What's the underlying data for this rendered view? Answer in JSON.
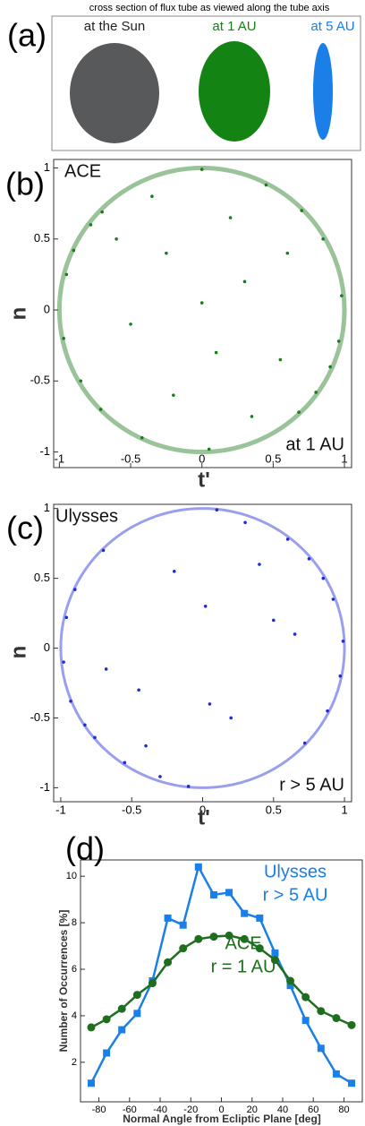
{
  "panel_a": {
    "panel_label": "(a)",
    "title": "cross section of flux tube as viewed along the tube axis",
    "labels": [
      "at the Sun",
      "at 1 AU",
      "at 5 AU"
    ]
  },
  "chart_data": [
    {
      "type": "scatter",
      "panel_label": "(b)",
      "xlabel": "t'",
      "ylabel": "n",
      "color": "#1f7a1f",
      "annotations": [
        "ACE",
        "at 1 AU"
      ],
      "x": [
        0.98,
        -0.97,
        0.7,
        -0.7,
        0.68,
        -0.71,
        0.0,
        0.05,
        0.9,
        -0.9,
        0.45,
        -0.42,
        0.3,
        -0.25,
        0.1,
        -0.5,
        0.55,
        0.6,
        -0.6,
        -0.2,
        0.2,
        0.85,
        -0.85,
        0.35,
        -0.35,
        0.0,
        -0.95,
        0.96,
        0.8,
        -0.78
      ],
      "values": [
        0.1,
        -0.2,
        0.7,
        0.69,
        -0.72,
        -0.7,
        0.99,
        -0.98,
        -0.4,
        0.42,
        0.88,
        -0.9,
        0.2,
        0.4,
        -0.3,
        -0.1,
        -0.35,
        0.4,
        0.5,
        -0.6,
        0.65,
        0.5,
        -0.5,
        -0.75,
        0.8,
        0.05,
        0.25,
        -0.22,
        -0.58,
        0.6
      ],
      "xlim": [
        -1.04,
        1.05
      ],
      "ylim": [
        -1.11,
        1.06
      ],
      "xticks": [
        -1,
        -0.5,
        0,
        0.5,
        1
      ],
      "yticks": [
        -1,
        -0.5,
        0,
        0.5,
        1
      ]
    },
    {
      "type": "scatter",
      "panel_label": "(c)",
      "xlabel": "t'",
      "ylabel": "n",
      "color": "#1f2bd6",
      "annotations": [
        "Ulysses",
        "r > 5 AU"
      ],
      "x": [
        0.99,
        -0.98,
        0.92,
        -0.93,
        0.88,
        -0.9,
        0.75,
        -0.76,
        0.72,
        -0.7,
        0.97,
        -0.96,
        0.6,
        -0.55,
        0.3,
        -0.3,
        0.1,
        -0.1,
        0.5,
        -0.45,
        0.2,
        -0.2,
        0.65,
        -0.68,
        0.4,
        -0.4,
        0.02,
        0.05,
        0.85,
        -0.83
      ],
      "values": [
        0.05,
        -0.1,
        0.35,
        -0.38,
        -0.45,
        0.42,
        0.64,
        -0.64,
        -0.68,
        0.7,
        -0.2,
        0.22,
        0.78,
        -0.82,
        0.9,
        -0.92,
        0.99,
        -0.99,
        0.2,
        -0.3,
        -0.5,
        0.55,
        0.1,
        -0.15,
        0.6,
        -0.7,
        0.3,
        -0.4,
        0.5,
        -0.55
      ],
      "xlim": [
        -1.05,
        1.05
      ],
      "ylim": [
        -1.1,
        1.03
      ],
      "xticks": [
        -1,
        -0.5,
        0,
        0.5,
        1
      ],
      "yticks": [
        -1,
        -0.5,
        0,
        0.5,
        1
      ]
    },
    {
      "type": "line",
      "panel_label": "(d)",
      "xlabel": "Normal Angle from Ecliptic Plane  [deg]",
      "ylabel": "Number of Occurrences [%]",
      "x": [
        -85,
        -75,
        -65,
        -55,
        -45,
        -35,
        -25,
        -15,
        -5,
        5,
        15,
        25,
        35,
        45,
        55,
        65,
        75,
        85
      ],
      "series": [
        {
          "name": "Ulysses",
          "color": "#1a7fe6",
          "marker": "square",
          "annotation": "r > 5 AU",
          "values": [
            1.1,
            2.4,
            3.4,
            4.1,
            5.5,
            8.2,
            7.9,
            10.4,
            9.2,
            9.3,
            8.4,
            8.2,
            6.7,
            5.3,
            3.8,
            2.6,
            1.5,
            1.1
          ]
        },
        {
          "name": "ACE",
          "color": "#1f6e1f",
          "marker": "circle",
          "annotation": "r = 1 AU",
          "values": [
            3.5,
            3.85,
            4.3,
            4.9,
            5.4,
            6.3,
            6.9,
            7.3,
            7.4,
            7.45,
            7.3,
            6.9,
            6.4,
            5.5,
            4.8,
            4.2,
            3.9,
            3.6
          ]
        }
      ],
      "xlim": [
        -92,
        92
      ],
      "ylim": [
        0.3,
        10.7
      ],
      "xticks": [
        -80,
        -60,
        -40,
        -20,
        0,
        20,
        40,
        60,
        80
      ],
      "yticks": [
        2,
        4,
        6,
        8,
        10
      ]
    }
  ]
}
